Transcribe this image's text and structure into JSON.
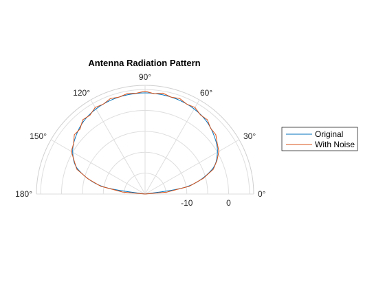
{
  "chart_data": {
    "type": "line",
    "coordinate_system": "polar",
    "angle_range_deg": [
      0,
      180
    ],
    "title": "Antenna Radiation Pattern",
    "theta_tick_labels": [
      "0°",
      "30°",
      "60°",
      "90°",
      "120°",
      "150°",
      "180°"
    ],
    "r_tick_labels": [
      "-10",
      "0"
    ],
    "rlim": [
      -20,
      6
    ],
    "grid": true,
    "legend_position": "right",
    "series": [
      {
        "name": "Original",
        "color": "#0072BD",
        "theta_deg": [
          0,
          10,
          20,
          30,
          40,
          50,
          60,
          70,
          80,
          90,
          100,
          110,
          120,
          130,
          140,
          150,
          160,
          170,
          180
        ],
        "r": [
          -20,
          -9.7,
          -3.0,
          0,
          1.6,
          2.8,
          3.5,
          3.9,
          4.1,
          4.2,
          4.1,
          3.9,
          3.5,
          2.8,
          1.6,
          0,
          -3.0,
          -9.7,
          -20
        ]
      },
      {
        "name": "With Noise",
        "color": "#D95319",
        "theta_deg": [
          0,
          5,
          10,
          15,
          20,
          25,
          30,
          35,
          40,
          45,
          50,
          55,
          60,
          65,
          70,
          75,
          80,
          85,
          90,
          95,
          100,
          105,
          110,
          115,
          120,
          125,
          130,
          135,
          140,
          145,
          150,
          155,
          160,
          165,
          170,
          175,
          180
        ],
        "r": [
          -20,
          -14.8,
          -9.2,
          -5.6,
          -2.6,
          -1.0,
          0.4,
          1.1,
          2.1,
          2.2,
          3.2,
          3.1,
          3.9,
          3.7,
          4.3,
          4.0,
          4.5,
          4.1,
          4.6,
          4.2,
          4.4,
          4.0,
          4.3,
          3.7,
          3.9,
          3.0,
          3.2,
          2.0,
          2.1,
          0.9,
          0.4,
          -1.3,
          -2.6,
          -5.8,
          -9.2,
          -14.6,
          -20
        ]
      }
    ]
  }
}
